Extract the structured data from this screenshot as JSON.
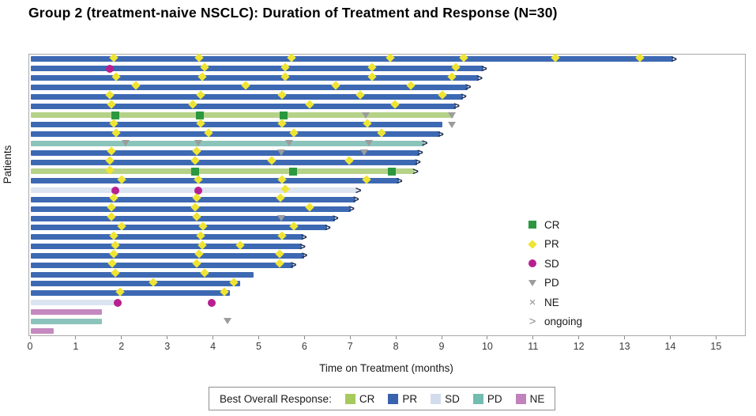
{
  "chart_data": {
    "type": "swimmer",
    "title": "Group 2 (treatment-naive NSCLC): Duration of Treatment and Response (N=30)",
    "xlabel": "Time on Treatment (months)",
    "ylabel": "Patients",
    "x_ticks": [
      "0",
      "1",
      "2",
      "3",
      "4",
      "5",
      "6",
      "7",
      "8",
      "9",
      "10",
      "11",
      "12",
      "13",
      "14",
      "15"
    ],
    "xlim": [
      0,
      15.65
    ],
    "grid": false,
    "legend_inplot": {
      "position": "right-lower",
      "items": [
        {
          "label": "CR",
          "symbol": "square"
        },
        {
          "label": "PR",
          "symbol": "diamond"
        },
        {
          "label": "SD",
          "symbol": "circle"
        },
        {
          "label": "PD",
          "symbol": "triangle"
        },
        {
          "label": "NE",
          "symbol": "cross"
        },
        {
          "label": "ongoing",
          "symbol": "chevron"
        }
      ]
    },
    "legend_bottom": {
      "title": "Best Overall Response:",
      "items": [
        {
          "label": "CR",
          "color": "#a6ca5e"
        },
        {
          "label": "PR",
          "color": "#3a63ad"
        },
        {
          "label": "SD",
          "color": "#d3dced"
        },
        {
          "label": "PD",
          "color": "#72bcb0"
        },
        {
          "label": "NE",
          "color": "#c083bb"
        }
      ]
    },
    "colors": {
      "bar": {
        "CR": "#b5d288",
        "PR": "#3d69b3",
        "SD": "#dce3f1",
        "PD": "#8bc4ba",
        "NE": "#c489bf"
      },
      "marker": {
        "CR": "#2b9840",
        "PR": "#efe433",
        "SD": "#b71f8f",
        "PD": "#9c9c9c",
        "NE": "#8f8f8f"
      },
      "ongoing_arrow": "#1f2d49"
    },
    "patients": [
      {
        "id": 1,
        "best_response": "PR",
        "duration": 14.05,
        "ongoing": true,
        "markers": [
          {
            "type": "PR",
            "t": 1.85
          },
          {
            "type": "PR",
            "t": 3.71
          },
          {
            "type": "PR",
            "t": 5.73
          },
          {
            "type": "PR",
            "t": 7.9
          },
          {
            "type": "PR",
            "t": 9.5
          },
          {
            "type": "PR",
            "t": 11.5
          },
          {
            "type": "PR",
            "t": 13.35
          }
        ]
      },
      {
        "id": 2,
        "best_response": "PR",
        "duration": 9.9,
        "ongoing": true,
        "markers": [
          {
            "type": "SD",
            "t": 1.73
          },
          {
            "type": "PR",
            "t": 3.83
          },
          {
            "type": "PR",
            "t": 5.59
          },
          {
            "type": "PR",
            "t": 7.49
          },
          {
            "type": "PR",
            "t": 9.33
          }
        ]
      },
      {
        "id": 3,
        "best_response": "PR",
        "duration": 9.8,
        "ongoing": true,
        "markers": [
          {
            "type": "PR",
            "t": 1.9
          },
          {
            "type": "PR",
            "t": 3.78
          },
          {
            "type": "PR",
            "t": 5.6
          },
          {
            "type": "PR",
            "t": 7.5
          },
          {
            "type": "PR",
            "t": 9.25
          }
        ]
      },
      {
        "id": 4,
        "best_response": "PR",
        "duration": 9.55,
        "ongoing": true,
        "markers": [
          {
            "type": "PR",
            "t": 2.34
          },
          {
            "type": "PR",
            "t": 4.73
          },
          {
            "type": "PR",
            "t": 6.71
          },
          {
            "type": "PR",
            "t": 8.35
          }
        ]
      },
      {
        "id": 5,
        "best_response": "PR",
        "duration": 9.45,
        "ongoing": true,
        "markers": [
          {
            "type": "PR",
            "t": 1.76
          },
          {
            "type": "PR",
            "t": 3.75
          },
          {
            "type": "PR",
            "t": 5.53
          },
          {
            "type": "PR",
            "t": 7.23
          },
          {
            "type": "PR",
            "t": 9.04
          }
        ]
      },
      {
        "id": 6,
        "best_response": "PR",
        "duration": 9.3,
        "ongoing": true,
        "markers": [
          {
            "type": "PR",
            "t": 1.8
          },
          {
            "type": "PR",
            "t": 3.58
          },
          {
            "type": "PR",
            "t": 6.13
          },
          {
            "type": "PR",
            "t": 8.0
          }
        ]
      },
      {
        "id": 7,
        "best_response": "CR",
        "duration": 9.25,
        "ongoing": false,
        "markers": [
          {
            "type": "CR",
            "t": 1.85
          },
          {
            "type": "CR",
            "t": 3.69
          },
          {
            "type": "CR",
            "t": 5.53
          },
          {
            "type": "PD",
            "t": 7.33
          },
          {
            "type": "PD",
            "t": 9.2
          }
        ]
      },
      {
        "id": 8,
        "best_response": "PR",
        "duration": 9.0,
        "ongoing": false,
        "markers": [
          {
            "type": "PR",
            "t": 1.85
          },
          {
            "type": "PR",
            "t": 3.75
          },
          {
            "type": "PR",
            "t": 5.53
          },
          {
            "type": "PR",
            "t": 7.4
          },
          {
            "type": "PD",
            "t": 9.2
          }
        ]
      },
      {
        "id": 9,
        "best_response": "PR",
        "duration": 8.95,
        "ongoing": true,
        "markers": [
          {
            "type": "PR",
            "t": 1.9
          },
          {
            "type": "PR",
            "t": 3.92
          },
          {
            "type": "PR",
            "t": 5.79
          },
          {
            "type": "PR",
            "t": 7.7
          }
        ]
      },
      {
        "id": 10,
        "best_response": "PD",
        "duration": 8.6,
        "ongoing": true,
        "markers": [
          {
            "type": "PD",
            "t": 2.08
          },
          {
            "type": "PD",
            "t": 3.66
          },
          {
            "type": "PD",
            "t": 5.65
          },
          {
            "type": "PD",
            "t": 7.4
          }
        ]
      },
      {
        "id": 11,
        "best_response": "PR",
        "duration": 8.5,
        "ongoing": true,
        "markers": [
          {
            "type": "PR",
            "t": 1.79
          },
          {
            "type": "PR",
            "t": 3.66
          },
          {
            "type": "PD",
            "t": 5.48
          },
          {
            "type": "PD",
            "t": 7.29
          }
        ]
      },
      {
        "id": 12,
        "best_response": "PR",
        "duration": 8.45,
        "ongoing": true,
        "markers": [
          {
            "type": "PR",
            "t": 1.76
          },
          {
            "type": "PR",
            "t": 3.63
          },
          {
            "type": "PR",
            "t": 5.3
          },
          {
            "type": "PR",
            "t": 7.0
          }
        ]
      },
      {
        "id": 13,
        "best_response": "CR",
        "duration": 8.4,
        "ongoing": true,
        "markers": [
          {
            "type": "PR",
            "t": 1.76
          },
          {
            "type": "CR",
            "t": 3.6
          },
          {
            "type": "CR",
            "t": 5.73
          },
          {
            "type": "CR",
            "t": 7.9
          }
        ]
      },
      {
        "id": 14,
        "best_response": "PR",
        "duration": 8.05,
        "ongoing": true,
        "markers": [
          {
            "type": "PR",
            "t": 2.02
          },
          {
            "type": "PR",
            "t": 3.69
          },
          {
            "type": "PR",
            "t": 5.53
          },
          {
            "type": "PR",
            "t": 7.37
          }
        ]
      },
      {
        "id": 15,
        "best_response": "SD",
        "duration": 7.15,
        "ongoing": true,
        "markers": [
          {
            "type": "SD",
            "t": 1.85
          },
          {
            "type": "SD",
            "t": 3.66
          },
          {
            "type": "PR",
            "t": 5.59
          }
        ]
      },
      {
        "id": 16,
        "best_response": "PR",
        "duration": 7.1,
        "ongoing": true,
        "markers": [
          {
            "type": "PR",
            "t": 1.85
          },
          {
            "type": "PR",
            "t": 3.66
          },
          {
            "type": "PR",
            "t": 5.5
          }
        ]
      },
      {
        "id": 17,
        "best_response": "PR",
        "duration": 7.0,
        "ongoing": true,
        "markers": [
          {
            "type": "PR",
            "t": 1.8
          },
          {
            "type": "PR",
            "t": 3.63
          },
          {
            "type": "PR",
            "t": 6.13
          }
        ]
      },
      {
        "id": 18,
        "best_response": "PR",
        "duration": 6.65,
        "ongoing": true,
        "markers": [
          {
            "type": "PR",
            "t": 1.8
          },
          {
            "type": "PR",
            "t": 3.66
          },
          {
            "type": "PD",
            "t": 5.48
          }
        ]
      },
      {
        "id": 19,
        "best_response": "PR",
        "duration": 6.48,
        "ongoing": true,
        "markers": [
          {
            "type": "PR",
            "t": 2.02
          },
          {
            "type": "PR",
            "t": 3.8
          },
          {
            "type": "PR",
            "t": 5.79
          }
        ]
      },
      {
        "id": 20,
        "best_response": "PR",
        "duration": 5.96,
        "ongoing": true,
        "markers": [
          {
            "type": "PR",
            "t": 1.85
          },
          {
            "type": "PR",
            "t": 3.75
          },
          {
            "type": "PR",
            "t": 5.53
          }
        ]
      },
      {
        "id": 21,
        "best_response": "PR",
        "duration": 5.93,
        "ongoing": true,
        "markers": [
          {
            "type": "PR",
            "t": 1.88
          },
          {
            "type": "PR",
            "t": 3.78
          },
          {
            "type": "PR",
            "t": 4.61
          }
        ]
      },
      {
        "id": 22,
        "best_response": "PR",
        "duration": 5.97,
        "ongoing": true,
        "markers": [
          {
            "type": "PR",
            "t": 1.85
          },
          {
            "type": "PR",
            "t": 3.71
          },
          {
            "type": "PR",
            "t": 5.48
          }
        ]
      },
      {
        "id": 23,
        "best_response": "PR",
        "duration": 5.73,
        "ongoing": true,
        "markers": [
          {
            "type": "PR",
            "t": 1.81
          },
          {
            "type": "PR",
            "t": 3.66
          },
          {
            "type": "PR",
            "t": 5.48
          }
        ]
      },
      {
        "id": 24,
        "best_response": "PR",
        "duration": 4.87,
        "ongoing": false,
        "markers": [
          {
            "type": "PR",
            "t": 1.88
          },
          {
            "type": "PR",
            "t": 3.83
          }
        ]
      },
      {
        "id": 25,
        "best_response": "PR",
        "duration": 4.58,
        "ongoing": false,
        "markers": [
          {
            "type": "PR",
            "t": 2.71
          },
          {
            "type": "PR",
            "t": 4.47
          }
        ]
      },
      {
        "id": 26,
        "best_response": "PR",
        "duration": 4.35,
        "ongoing": false,
        "markers": [
          {
            "type": "PR",
            "t": 1.99
          },
          {
            "type": "PR",
            "t": 4.27
          }
        ]
      },
      {
        "id": 27,
        "best_response": "SD",
        "duration": 1.85,
        "ongoing": false,
        "markers": [
          {
            "type": "SD",
            "t": 1.9
          },
          {
            "type": "SD",
            "t": 3.95
          }
        ]
      },
      {
        "id": 28,
        "best_response": "NE",
        "duration": 1.55,
        "ongoing": false,
        "markers": []
      },
      {
        "id": 29,
        "best_response": "PD",
        "duration": 1.55,
        "ongoing": false,
        "markers": [
          {
            "type": "PD",
            "t": 4.3
          }
        ]
      },
      {
        "id": 30,
        "best_response": "NE",
        "duration": 0.5,
        "ongoing": false,
        "markers": []
      }
    ]
  }
}
